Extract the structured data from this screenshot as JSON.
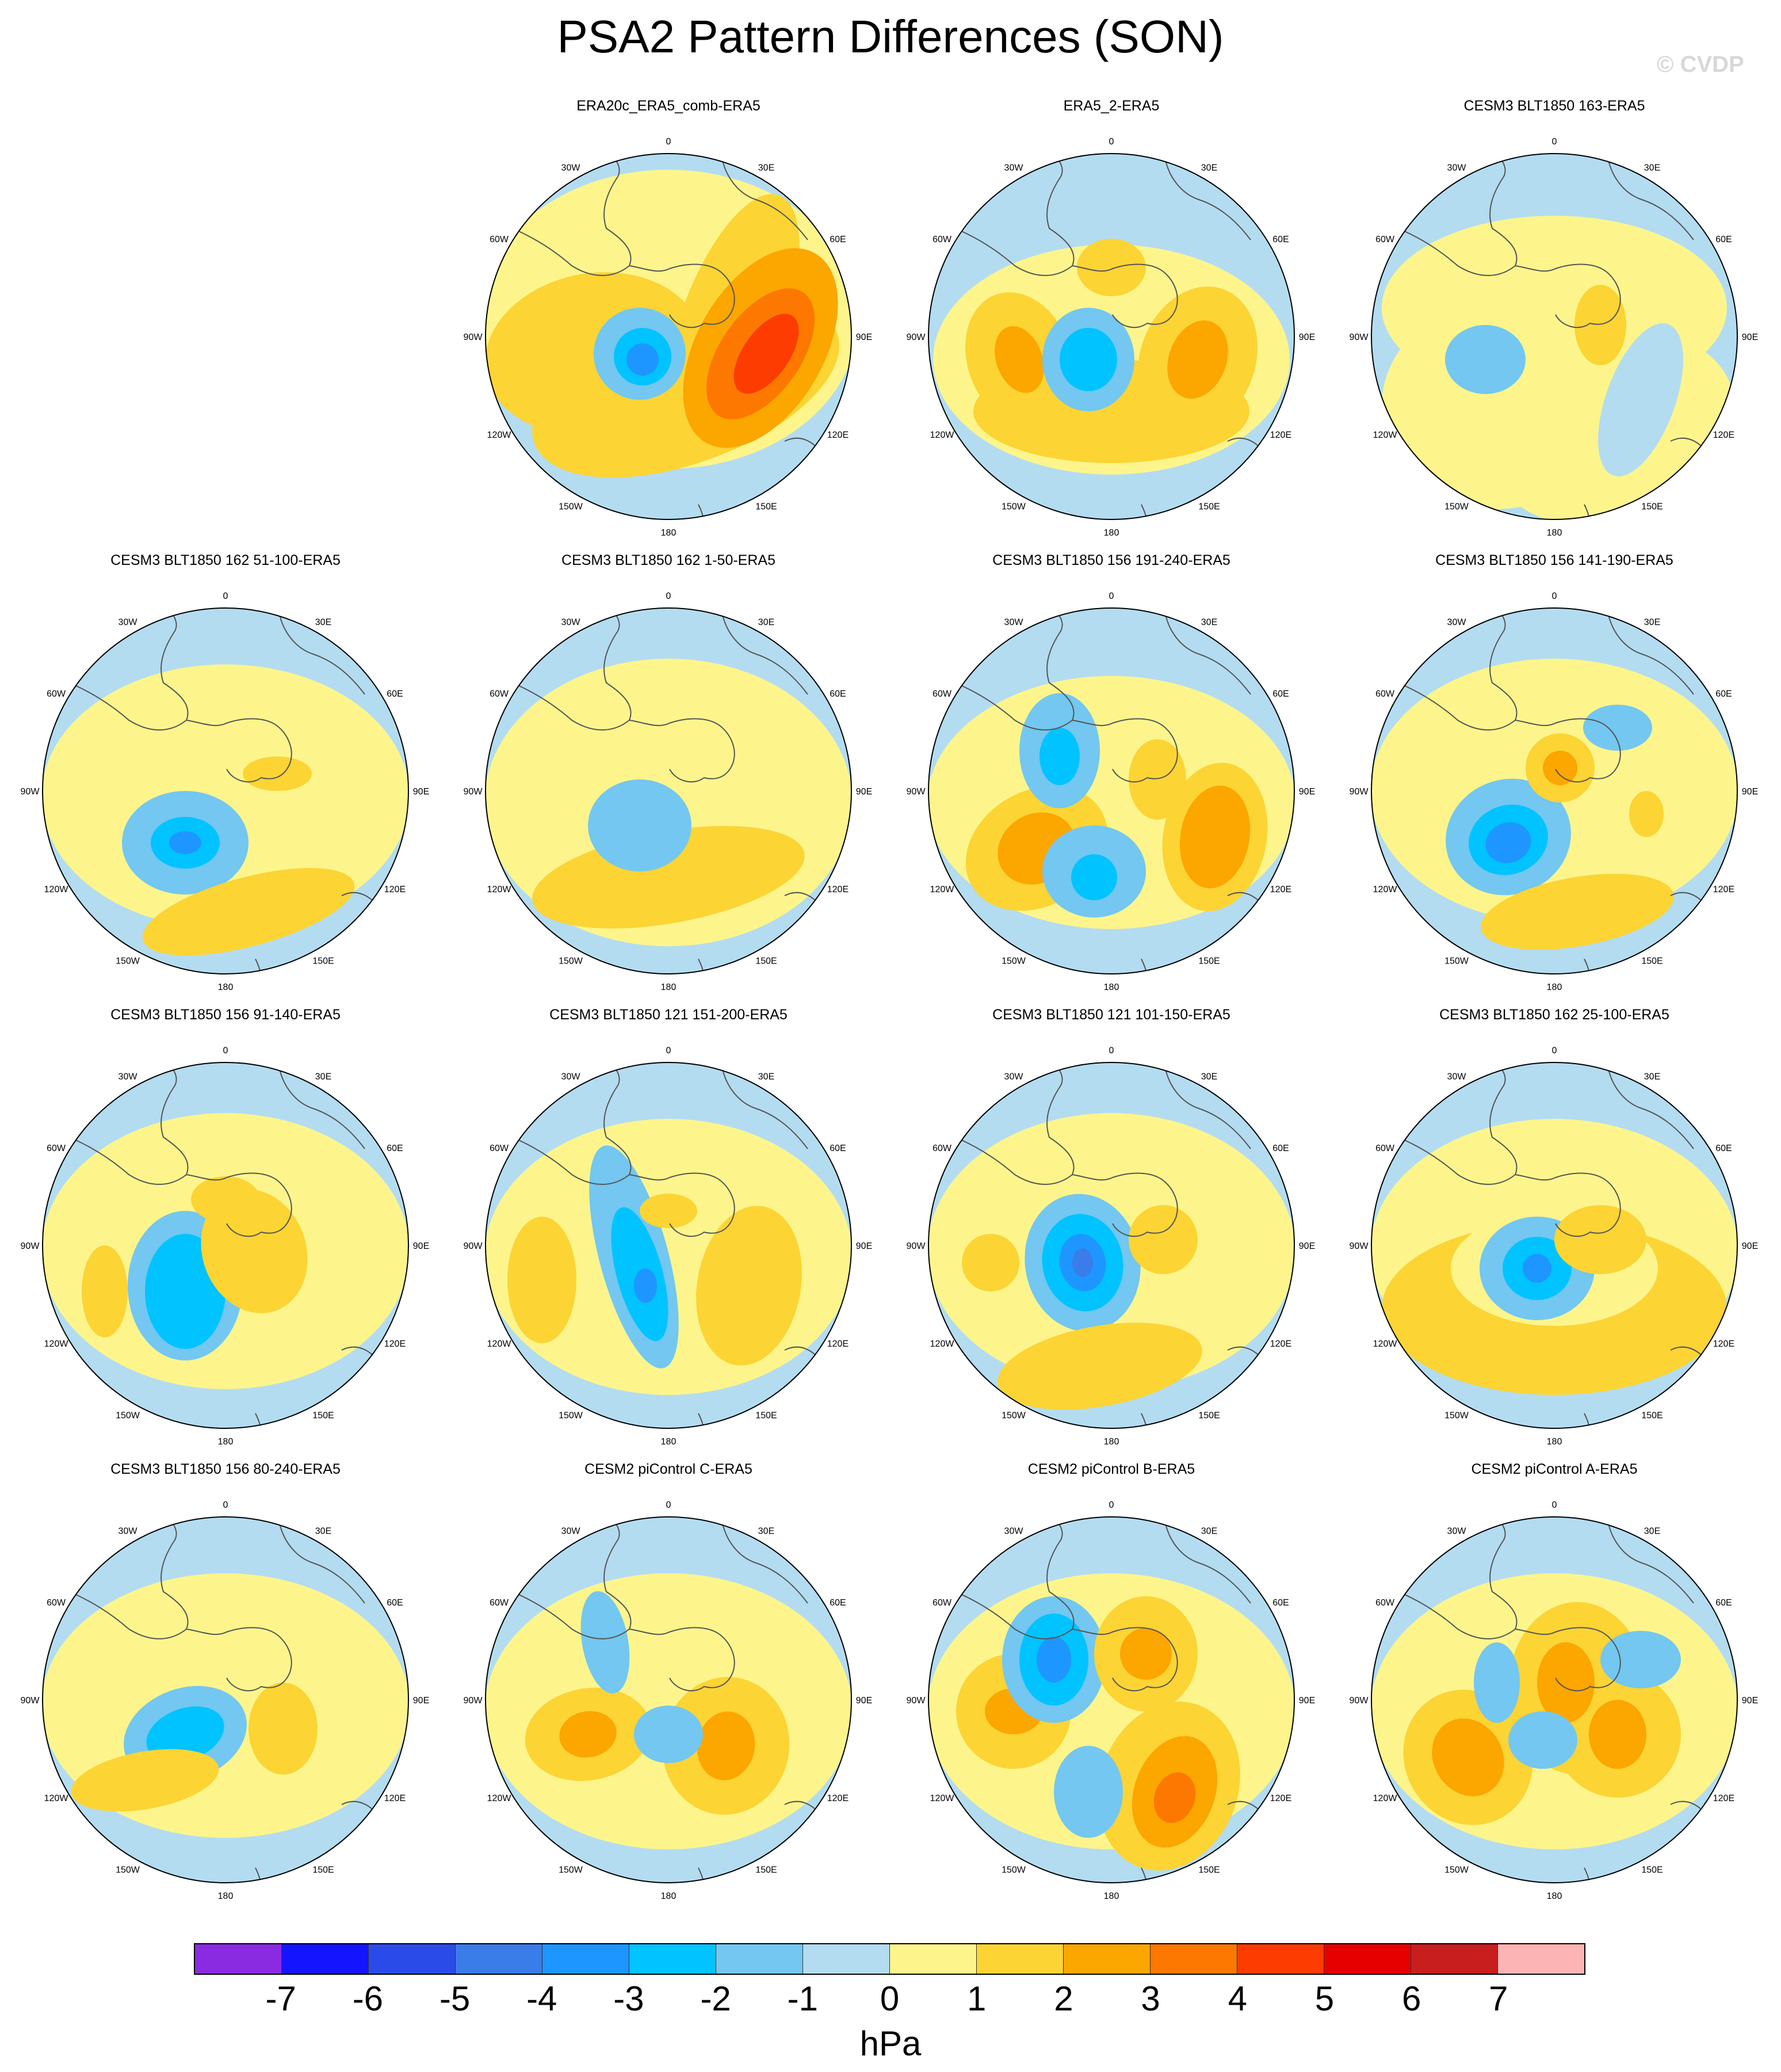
{
  "figure": {
    "title": "PSA2 Pattern Differences (SON)",
    "watermark": "© CVDP"
  },
  "colors": {
    "background": "#ffffff",
    "ocean_neutral": "#b3dcf1",
    "coastline": "#555555"
  },
  "longitude_labels": [
    "0",
    "30E",
    "60E",
    "90E",
    "120E",
    "150E",
    "180",
    "150W",
    "120W",
    "90W",
    "60W",
    "30W"
  ],
  "panels": [
    {
      "title": "ERA20c_ERA5_comb-ERA5",
      "row": 0,
      "col": 1
    },
    {
      "title": "ERA5_2-ERA5",
      "row": 0,
      "col": 2
    },
    {
      "title": "CESM3 BLT1850 163-ERA5",
      "row": 0,
      "col": 3
    },
    {
      "title": "CESM3 BLT1850 162 51-100-ERA5",
      "row": 1,
      "col": 0
    },
    {
      "title": "CESM3 BLT1850 162 1-50-ERA5",
      "row": 1,
      "col": 1
    },
    {
      "title": "CESM3 BLT1850 156 191-240-ERA5",
      "row": 1,
      "col": 2
    },
    {
      "title": "CESM3 BLT1850 156 141-190-ERA5",
      "row": 1,
      "col": 3
    },
    {
      "title": "CESM3 BLT1850 156 91-140-ERA5",
      "row": 2,
      "col": 0
    },
    {
      "title": "CESM3 BLT1850 121 151-200-ERA5",
      "row": 2,
      "col": 1
    },
    {
      "title": "CESM3 BLT1850 121 101-150-ERA5",
      "row": 2,
      "col": 2
    },
    {
      "title": "CESM3 BLT1850 162 25-100-ERA5",
      "row": 2,
      "col": 3
    },
    {
      "title": "CESM3 BLT1850 156 80-240-ERA5",
      "row": 3,
      "col": 0
    },
    {
      "title": "CESM2 piControl C-ERA5",
      "row": 3,
      "col": 1
    },
    {
      "title": "CESM2 piControl B-ERA5",
      "row": 3,
      "col": 2
    },
    {
      "title": "CESM2 piControl A-ERA5",
      "row": 3,
      "col": 3
    }
  ],
  "colorbar": {
    "units": "hPa",
    "ticks": [
      "-7",
      "-6",
      "-5",
      "-4",
      "-3",
      "-2",
      "-1",
      "0",
      "1",
      "2",
      "3",
      "4",
      "5",
      "6",
      "7"
    ],
    "colors": [
      "#8a2be2",
      "#1414ff",
      "#2b4be8",
      "#3a7ce8",
      "#1e96ff",
      "#00c3ff",
      "#73c7f0",
      "#b3dcf1",
      "#fdf58c",
      "#fcd434",
      "#fca600",
      "#fc7800",
      "#fc3c00",
      "#e60000",
      "#c81e1e",
      "#fcb4b4"
    ]
  }
}
